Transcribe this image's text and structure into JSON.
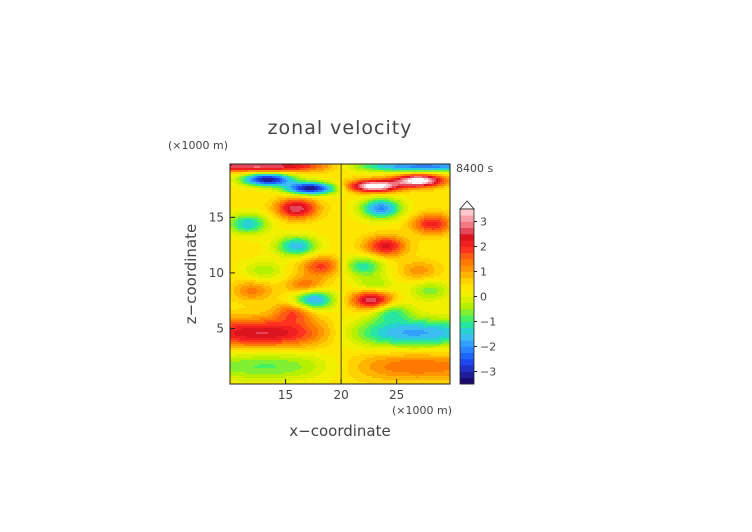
{
  "chart_data": {
    "type": "heatmap",
    "title": "zonal velocity",
    "time_label": "8400 s",
    "xlabel": "x−coordinate",
    "ylabel": "z−coordinate",
    "x_unit": "(×1000 m)",
    "y_unit": "(×1000 m)",
    "xlim": [
      10,
      29.8
    ],
    "ylim": [
      0,
      19.8
    ],
    "x_ticks": [
      15,
      20,
      25
    ],
    "y_ticks": [
      5,
      10,
      15
    ],
    "colorbar": {
      "range": [
        -3.5,
        3.5
      ],
      "step": 0.25,
      "ticks": [
        "3",
        "2",
        "1",
        "0",
        "−1",
        "−2",
        "−3"
      ],
      "tick_values": [
        3,
        2,
        1,
        0,
        -1,
        -2,
        -3
      ],
      "extend": "max"
    },
    "features": [
      {
        "x": 13.4,
        "z": 18.4,
        "value": -3.6,
        "shape": "jet"
      },
      {
        "x": 17.2,
        "z": 17.6,
        "value": -3.6,
        "shape": "jet"
      },
      {
        "x": 23.0,
        "z": 17.8,
        "value": 3.6,
        "shape": "jet"
      },
      {
        "x": 27.0,
        "z": 18.3,
        "value": 3.6,
        "shape": "jet"
      },
      {
        "x": 15.0,
        "z": 19.6,
        "value": 3.3,
        "shape": "strip"
      },
      {
        "x": 25.0,
        "z": 19.6,
        "value": -3.3,
        "shape": "strip"
      },
      {
        "x": 14.5,
        "z": 4.6,
        "value": 2.6,
        "shape": "band"
      },
      {
        "x": 25.0,
        "z": 4.6,
        "value": -2.6,
        "shape": "band"
      },
      {
        "x": 15.0,
        "z": 1.6,
        "value": -1.4,
        "shape": "band"
      },
      {
        "x": 25.0,
        "z": 1.6,
        "value": 1.4,
        "shape": "band"
      },
      {
        "x": 17.5,
        "z": 7.6,
        "value": -2.4,
        "shape": "blob"
      },
      {
        "x": 22.8,
        "z": 7.6,
        "value": 2.6,
        "shape": "blob"
      },
      {
        "x": 15.8,
        "z": 6.5,
        "value": 1.3,
        "shape": "blob"
      },
      {
        "x": 24.5,
        "z": 6.5,
        "value": -1.3,
        "shape": "blob"
      },
      {
        "x": 16.0,
        "z": 15.8,
        "value": 2.4,
        "shape": "blob"
      },
      {
        "x": 23.6,
        "z": 15.8,
        "value": -2.4,
        "shape": "blob"
      },
      {
        "x": 11.6,
        "z": 14.4,
        "value": -1.8,
        "shape": "blob"
      },
      {
        "x": 28.2,
        "z": 14.4,
        "value": 1.8,
        "shape": "blob"
      },
      {
        "x": 16.0,
        "z": 12.4,
        "value": -2.0,
        "shape": "blob"
      },
      {
        "x": 24.0,
        "z": 12.4,
        "value": 2.0,
        "shape": "blob"
      },
      {
        "x": 18.2,
        "z": 10.6,
        "value": 1.5,
        "shape": "blob"
      },
      {
        "x": 22.0,
        "z": 10.6,
        "value": -1.5,
        "shape": "blob"
      },
      {
        "x": 12.0,
        "z": 8.4,
        "value": 1.0,
        "shape": "blob"
      },
      {
        "x": 28.0,
        "z": 8.4,
        "value": -1.0,
        "shape": "blob"
      },
      {
        "x": 13.0,
        "z": 10.2,
        "value": -0.8,
        "shape": "blob"
      },
      {
        "x": 27.0,
        "z": 10.2,
        "value": 0.8,
        "shape": "blob"
      },
      {
        "x": 16.8,
        "z": 8.8,
        "value": 1.2,
        "shape": "blob"
      },
      {
        "x": 23.0,
        "z": 8.8,
        "value": -1.0,
        "shape": "blob"
      }
    ]
  }
}
